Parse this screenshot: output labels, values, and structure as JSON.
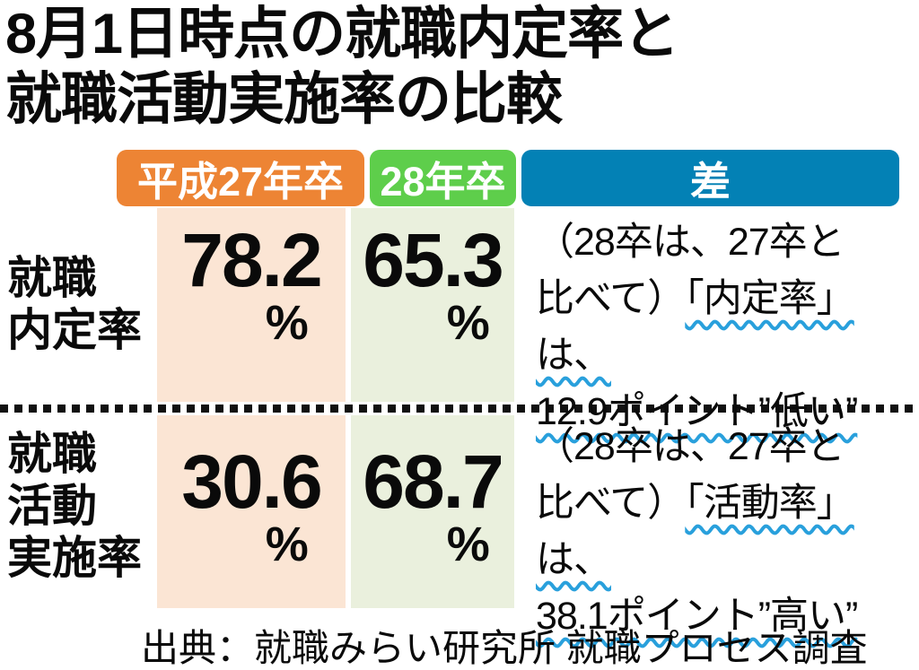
{
  "title": "8月1日時点の就職内定率と\n就職活動実施率の比較",
  "colors": {
    "h27_badge": "#ED8434",
    "h28_badge": "#5ECE4B",
    "diff_badge": "#0381B5",
    "h27_column_bg": "#FBE5D4",
    "h28_column_bg": "#EAF0DD",
    "wavy_underline": "#29A0DC",
    "text": "#0A0A0A"
  },
  "table": {
    "headers": {
      "h27": "平成27年卒",
      "h28": "28年卒",
      "diff": "差"
    },
    "rows": [
      {
        "label": "就職\n内定率",
        "h27_value": "78.2",
        "h28_value": "65.3",
        "unit": "%",
        "diff": {
          "line1": "（28卒は、27卒と",
          "line2_plain": "比べて）",
          "line2_wavy": "「内定率」は、",
          "line3_wavy": "12.9ポイント”低い”"
        }
      },
      {
        "label": "就職\n活動\n実施率",
        "h27_value": "30.6",
        "h28_value": "68.7",
        "unit": "%",
        "diff": {
          "line1": "（28卒は、27卒と",
          "line2_plain": "比べて）",
          "line2_wavy": "「活動率」は、",
          "line3_wavy": "38.1ポイント”高い”"
        }
      }
    ]
  },
  "source": "出典：就職みらい研究所 就職プロセス調査",
  "chart_data": {
    "type": "table",
    "title": "8月1日時点の就職内定率と就職活動実施率の比較",
    "categories": [
      "就職内定率",
      "就職活動実施率"
    ],
    "series": [
      {
        "name": "平成27年卒",
        "values": [
          78.2,
          30.6
        ]
      },
      {
        "name": "28年卒",
        "values": [
          65.3,
          68.7
        ]
      }
    ],
    "unit": "%",
    "difference_points": [
      -12.9,
      38.1
    ],
    "difference_notes": [
      "（28卒は、27卒と比べて）「内定率」は、12.9ポイント”低い”",
      "（28卒は、27卒と比べて）「活動率」は、38.1ポイント”高い”"
    ],
    "source": "出典：就職みらい研究所 就職プロセス調査"
  }
}
